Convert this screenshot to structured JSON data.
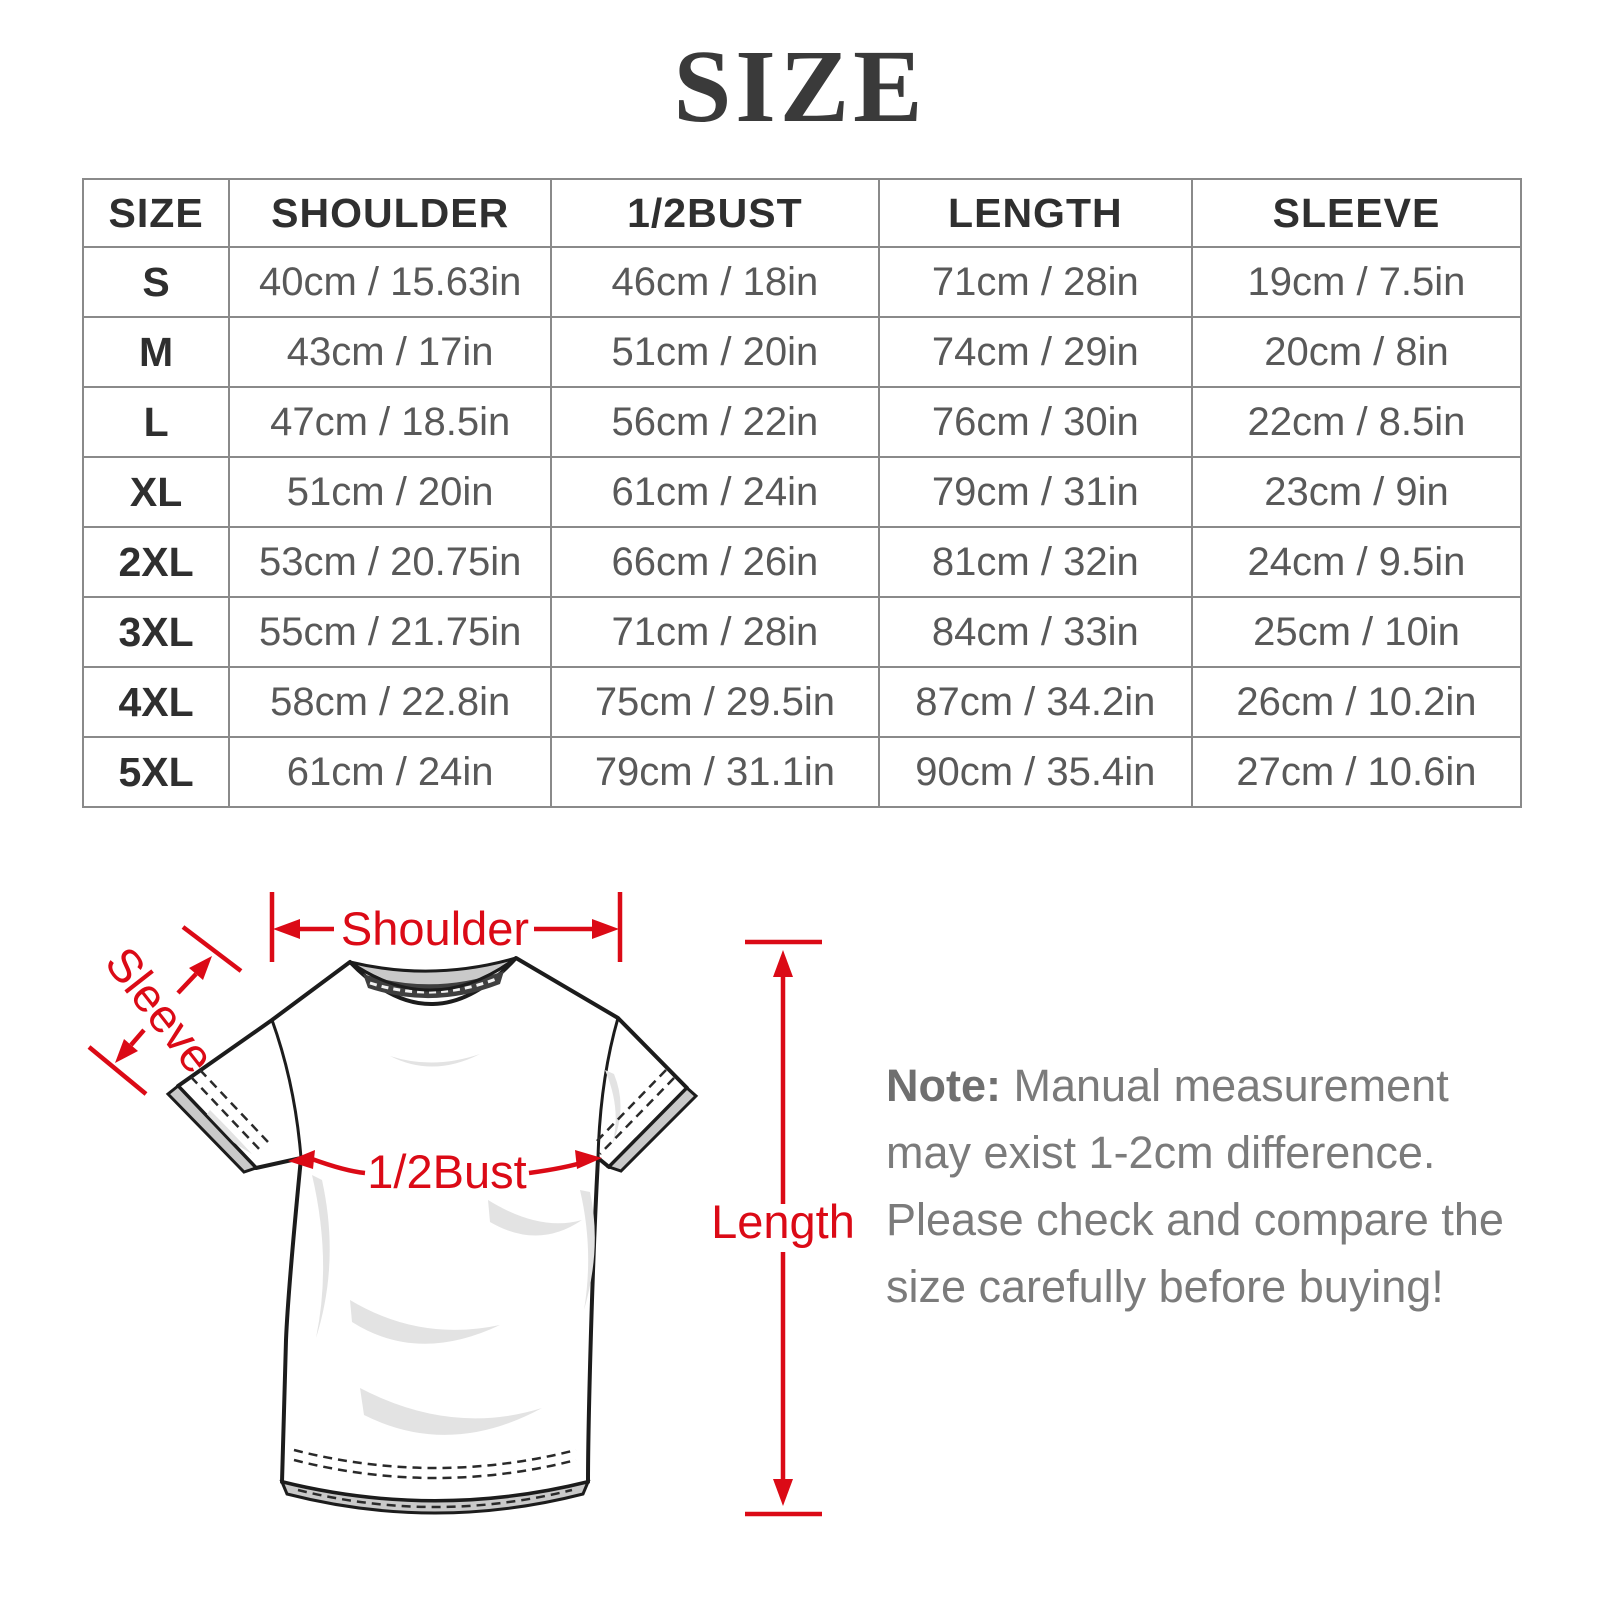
{
  "title": "SIZE",
  "colors": {
    "accent": "#db0a16",
    "title": "#3a3a3a",
    "header_text": "#2f2f2f",
    "table_text": "#595959",
    "border": "#8a8a8a",
    "note_text": "#7b7b7b",
    "note_label": "#6f6f6f"
  },
  "table": {
    "headers": [
      "SIZE",
      "SHOULDER",
      "1/2BUST",
      "LENGTH",
      "SLEEVE"
    ],
    "rows": [
      [
        "S",
        "40cm / 15.63in",
        "46cm / 18in",
        "71cm / 28in",
        "19cm / 7.5in"
      ],
      [
        "M",
        "43cm / 17in",
        "51cm / 20in",
        "74cm / 29in",
        "20cm / 8in"
      ],
      [
        "L",
        "47cm / 18.5in",
        "56cm / 22in",
        "76cm / 30in",
        "22cm / 8.5in"
      ],
      [
        "XL",
        "51cm / 20in",
        "61cm / 24in",
        "79cm / 31in",
        "23cm / 9in"
      ],
      [
        "2XL",
        "53cm / 20.75in",
        "66cm / 26in",
        "81cm / 32in",
        "24cm / 9.5in"
      ],
      [
        "3XL",
        "55cm / 21.75in",
        "71cm / 28in",
        "84cm / 33in",
        "25cm / 10in"
      ],
      [
        "4XL",
        "58cm / 22.8in",
        "75cm / 29.5in",
        "87cm / 34.2in",
        "26cm / 10.2in"
      ],
      [
        "5XL",
        "61cm / 24in",
        "79cm / 31.1in",
        "90cm / 35.4in",
        "27cm / 10.6in"
      ]
    ]
  },
  "diagram": {
    "labels": {
      "shoulder": "Shoulder",
      "sleeve": "Sleeve",
      "bust": "1/2Bust",
      "length": "Length"
    }
  },
  "note": {
    "label": "Note:",
    "text": " Manual measurement may exist 1-2cm difference. Please check and compare the size carefully before buying!"
  }
}
